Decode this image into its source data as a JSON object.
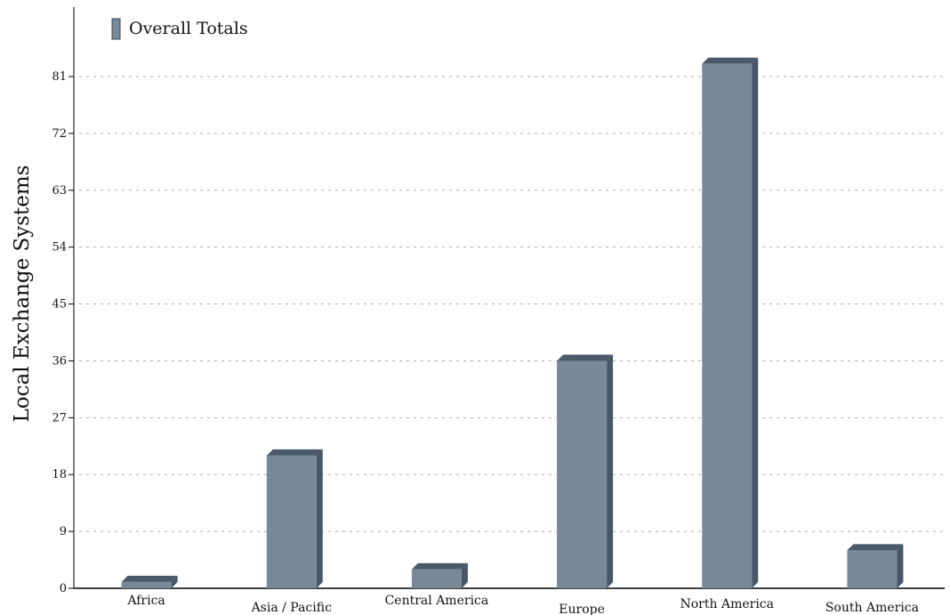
{
  "chart_data": {
    "type": "bar",
    "title": "",
    "xlabel": "",
    "ylabel": "Local Exchange Systems",
    "categories": [
      "Africa",
      "Asia / Pacific",
      "Central America",
      "Europe",
      "North America",
      "South America"
    ],
    "series": [
      {
        "name": "Overall Totals",
        "values": [
          1,
          21,
          3,
          36,
          83,
          6
        ]
      }
    ],
    "ylim": [
      0,
      90
    ],
    "yticks": [
      0,
      9,
      18,
      27,
      36,
      45,
      54,
      63,
      72,
      81
    ],
    "grid": true,
    "legend": "top-left",
    "style": "3d"
  },
  "colors": {
    "bar_front": "#788999",
    "bar_top": "#4a5a6a",
    "bar_side": "#465767",
    "grid": "#aaaaaa",
    "axis": "#000000"
  }
}
